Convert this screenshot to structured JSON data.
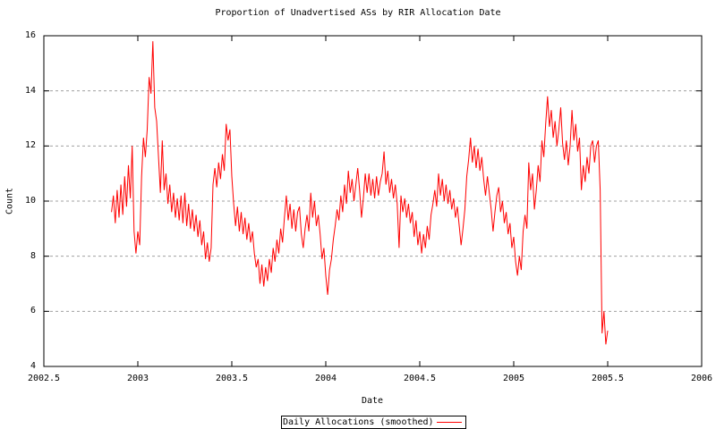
{
  "title": "Proportion of Unadvertised ASs by RIR Allocation Date",
  "colors": {
    "series_line": "#ff0000",
    "grid": "#a0a0a0",
    "axis": "#000000",
    "background": "#ffffff",
    "text": "#000000"
  },
  "legend": {
    "label": "Daily Allocations (smoothed)",
    "line_color": "#ff0000",
    "position": "bottom-center-boxed"
  },
  "chart_data": {
    "type": "line",
    "title": "Proportion of Unadvertised ASs by RIR Allocation Date",
    "xlabel": "Date",
    "ylabel": "Count",
    "xlim": [
      2002.5,
      2006
    ],
    "ylim": [
      4,
      16
    ],
    "grid": "horizontal-dashed",
    "legend_position": "below-plot-boxed",
    "xticks": [
      {
        "v": 2002.5,
        "label": "2002.5"
      },
      {
        "v": 2003,
        "label": "2003"
      },
      {
        "v": 2003.5,
        "label": "2003.5"
      },
      {
        "v": 2004,
        "label": "2004"
      },
      {
        "v": 2004.5,
        "label": "2004.5"
      },
      {
        "v": 2005,
        "label": "2005"
      },
      {
        "v": 2005.5,
        "label": "2005.5"
      },
      {
        "v": 2006,
        "label": "2006"
      }
    ],
    "yticks": [
      {
        "v": 4,
        "label": "4",
        "grid": false
      },
      {
        "v": 6,
        "label": "6",
        "grid": true
      },
      {
        "v": 8,
        "label": "8",
        "grid": true
      },
      {
        "v": 10,
        "label": "10",
        "grid": true
      },
      {
        "v": 12,
        "label": "12",
        "grid": true
      },
      {
        "v": 14,
        "label": "14",
        "grid": true
      },
      {
        "v": 16,
        "label": "16",
        "grid": false
      }
    ],
    "series": [
      {
        "name": "Daily Allocations (smoothed)",
        "color": "#ff0000",
        "x_start": 2002.86,
        "x_step": 0.01,
        "values": [
          9.6,
          10.2,
          9.2,
          10.4,
          9.4,
          10.6,
          9.5,
          10.9,
          9.8,
          11.3,
          10.1,
          12.0,
          8.9,
          8.1,
          8.9,
          8.4,
          10.9,
          12.3,
          11.6,
          12.6,
          14.5,
          13.9,
          15.8,
          13.4,
          12.9,
          11.6,
          10.3,
          12.2,
          10.4,
          11.0,
          9.9,
          10.6,
          9.6,
          10.3,
          9.4,
          10.1,
          9.3,
          10.2,
          9.2,
          10.3,
          9.1,
          9.9,
          9.0,
          9.7,
          8.9,
          9.5,
          8.7,
          9.3,
          8.4,
          8.9,
          7.9,
          8.5,
          7.8,
          8.3,
          10.6,
          11.2,
          10.5,
          11.4,
          10.8,
          11.7,
          11.1,
          12.8,
          12.2,
          12.6,
          10.9,
          9.9,
          9.1,
          9.8,
          8.9,
          9.6,
          8.8,
          9.4,
          8.6,
          9.2,
          8.5,
          8.9,
          8.1,
          7.6,
          7.9,
          7.0,
          7.7,
          6.9,
          7.6,
          7.1,
          7.9,
          7.4,
          8.3,
          7.8,
          8.6,
          8.1,
          9.0,
          8.5,
          9.4,
          10.2,
          9.3,
          9.9,
          9.0,
          9.7,
          8.9,
          9.6,
          9.8,
          8.8,
          8.3,
          9.0,
          9.5,
          8.9,
          10.3,
          9.4,
          10.0,
          9.1,
          9.5,
          8.8,
          7.9,
          8.3,
          7.3,
          6.6,
          7.5,
          7.9,
          8.6,
          9.1,
          9.7,
          9.3,
          10.2,
          9.6,
          10.6,
          9.9,
          11.1,
          10.3,
          10.8,
          10.0,
          10.6,
          11.2,
          10.4,
          9.4,
          10.1,
          11.0,
          10.3,
          11.0,
          10.2,
          10.8,
          10.1,
          10.9,
          10.2,
          10.7,
          11.0,
          11.8,
          10.6,
          11.1,
          10.3,
          10.8,
          10.1,
          10.6,
          9.9,
          8.3,
          10.2,
          9.6,
          10.1,
          9.4,
          9.9,
          9.2,
          9.6,
          8.7,
          9.3,
          8.4,
          8.9,
          8.1,
          8.8,
          8.3,
          9.1,
          8.6,
          9.5,
          9.9,
          10.4,
          9.8,
          11.0,
          10.2,
          10.8,
          10.0,
          10.6,
          9.9,
          10.4,
          9.7,
          10.1,
          9.4,
          9.8,
          9.1,
          8.4,
          9.0,
          9.7,
          10.9,
          11.5,
          12.3,
          11.4,
          12.0,
          11.2,
          11.9,
          11.1,
          11.6,
          10.8,
          10.2,
          10.9,
          10.3,
          9.7,
          8.9,
          9.6,
          10.2,
          10.5,
          9.6,
          10.0,
          9.2,
          9.6,
          8.8,
          9.2,
          8.3,
          8.7,
          7.8,
          7.3,
          8.0,
          7.5,
          8.9,
          9.5,
          9.0,
          11.4,
          10.4,
          11.0,
          9.7,
          10.4,
          11.3,
          10.7,
          12.2,
          11.6,
          12.8,
          13.8,
          12.7,
          13.3,
          12.3,
          12.9,
          12.0,
          12.6,
          13.4,
          12.1,
          11.5,
          12.2,
          11.3,
          12.0,
          13.3,
          12.2,
          12.8,
          11.8,
          12.3,
          10.4,
          11.3,
          10.7,
          11.6,
          11.0,
          12.0,
          12.2,
          11.4,
          12.0,
          12.2,
          10.4,
          5.2,
          6.0,
          4.8,
          5.3
        ]
      }
    ]
  }
}
